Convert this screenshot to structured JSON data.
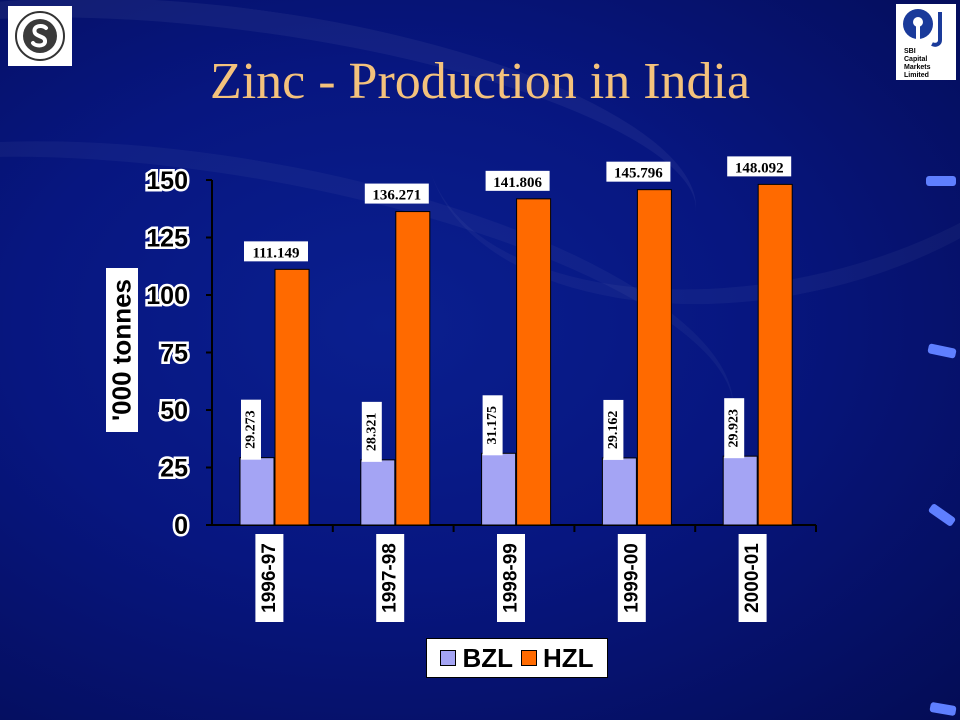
{
  "slide": {
    "title": "Zinc - Production in India",
    "logo_right_text": "SBI\nCapital\nMarkets\nLimited"
  },
  "chart_data": {
    "type": "bar",
    "title": "",
    "xlabel": "",
    "ylabel": "'000 tonnes",
    "ylim": [
      0,
      150
    ],
    "yticks": [
      0,
      25,
      50,
      75,
      100,
      125,
      150
    ],
    "categories": [
      "1996-97",
      "1997-98",
      "1998-99",
      "1999-00",
      "2000-01"
    ],
    "series": [
      {
        "name": "BZL",
        "color": "#a4a4f4",
        "values": [
          29.273,
          28.321,
          31.175,
          29.162,
          29.923
        ]
      },
      {
        "name": "HZL",
        "color": "#ff6a00",
        "values": [
          111.149,
          136.271,
          141.806,
          145.796,
          148.092
        ]
      }
    ],
    "data_labels": [
      [
        "29.273",
        "28.321",
        "31.175",
        "29.162",
        "29.923"
      ],
      [
        "111.149",
        "136.271",
        "141.806",
        "145.796",
        "148.092"
      ]
    ],
    "legend": "bottom",
    "grid": false
  },
  "colors": {
    "background": "#071680",
    "title": "#f4c27c",
    "bzl": "#a4a4f4",
    "hzl": "#ff6a00"
  }
}
